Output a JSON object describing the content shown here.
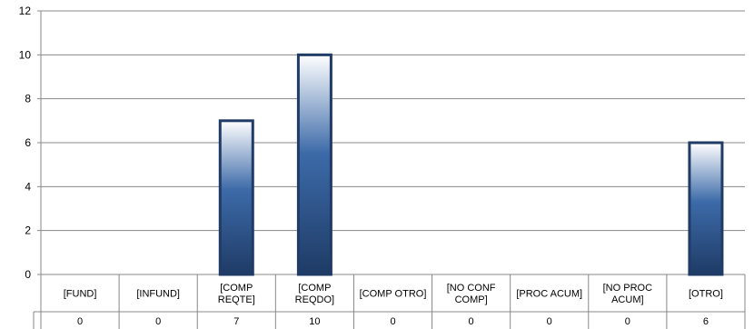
{
  "chart_data": {
    "type": "bar",
    "title": "",
    "xlabel": "",
    "ylabel": "",
    "ylim": [
      0,
      12
    ],
    "yticks": [
      0,
      2,
      4,
      6,
      8,
      10,
      12
    ],
    "grid": true,
    "legend": "none",
    "categories": [
      [
        "[FUND]"
      ],
      [
        "[INFUND]"
      ],
      [
        "[COMP",
        "REQTE]"
      ],
      [
        "[COMP",
        "REQDO]"
      ],
      [
        "[COMP OTRO]"
      ],
      [
        "[NO CONF",
        "COMP]"
      ],
      [
        "[PROC ACUM]"
      ],
      [
        "[NO PROC",
        "ACUM]"
      ],
      [
        "[OTRO]"
      ]
    ],
    "values": [
      0,
      0,
      7,
      10,
      0,
      0,
      0,
      0,
      6
    ],
    "table_values": [
      "0",
      "0",
      "7",
      "10",
      "0",
      "0",
      "0",
      "0",
      "6"
    ],
    "colors": {
      "bar_dark": "#1f3b66",
      "bar_mid": "#3c6aa8",
      "bar_light": "#ffffff",
      "grid": "#888888"
    }
  }
}
